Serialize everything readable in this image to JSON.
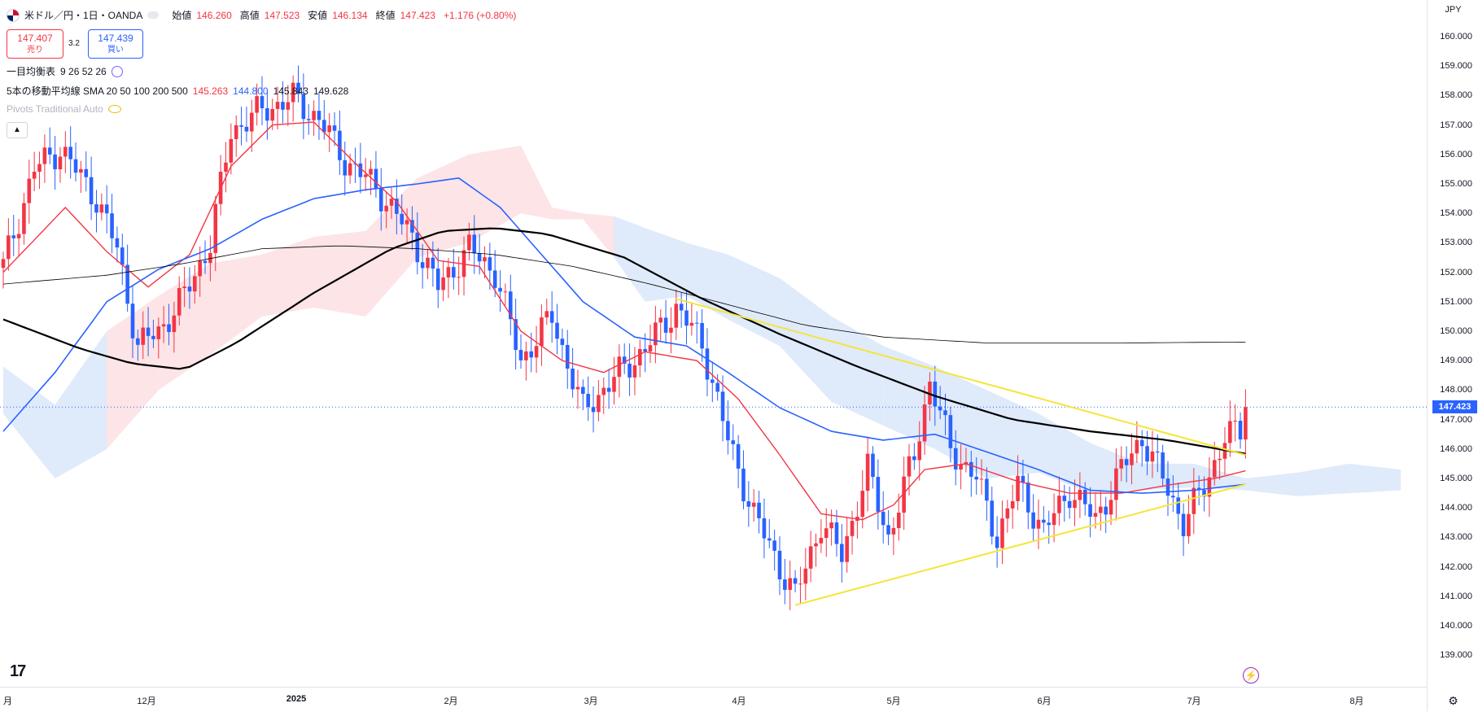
{
  "header": {
    "symbol_title": "米ドル／円・1日・OANDA",
    "ohlc": [
      {
        "key": "始値",
        "value": "146.260"
      },
      {
        "key": "高値",
        "value": "147.523"
      },
      {
        "key": "安値",
        "value": "146.134"
      },
      {
        "key": "終値",
        "value": "147.423"
      }
    ],
    "change": "+1.176 (+0.80%)",
    "sell_price": "147.407",
    "sell_label": "売り",
    "buy_price": "147.439",
    "buy_label": "買い",
    "spread": "3.2"
  },
  "indicators": {
    "ichimoku_label": "一目均衡表",
    "ichimoku_params": "9 26 52 26",
    "ma_label": "5本の移動平均線 SMA 20 50 100 200 500",
    "ma_values": [
      "145.263",
      "144.800",
      "145.843",
      "149.628"
    ],
    "pivots_label": "Pivots Traditional Auto"
  },
  "right_axis": {
    "currency": "JPY",
    "current_price_label": "147.423"
  },
  "colors": {
    "up": "#f23645",
    "down": "#2962ff",
    "sma20": "#f23645",
    "sma50": "#2962ff",
    "sma100": "#000000",
    "sma200": "#000000",
    "trendline": "#f5e53b",
    "cloud_bull": "#fde4e6",
    "cloud_bear": "#dfeafa"
  },
  "icons": [
    "us-japan-flag-icon",
    "settings-icon",
    "tradingview-logo-icon",
    "lightning-icon",
    "eye-hidden-icon",
    "chevron-up-icon"
  ],
  "chart_data": {
    "type": "candlestick",
    "title": "米ドル／円・1日・OANDA",
    "ylim": [
      138.5,
      160.5
    ],
    "yticks": [
      "160.000",
      "159.000",
      "158.000",
      "157.000",
      "156.000",
      "155.000",
      "154.000",
      "153.000",
      "152.000",
      "151.000",
      "150.000",
      "149.000",
      "148.000",
      "147.000",
      "146.000",
      "145.000",
      "144.000",
      "143.000",
      "142.000",
      "141.000",
      "140.000",
      "139.000"
    ],
    "xticks": [
      "月",
      "12月",
      "2025",
      "2月",
      "3月",
      "4月",
      "5月",
      "6月",
      "7月",
      "8月"
    ],
    "last_close": 147.423,
    "anchors": [
      {
        "i": 0,
        "price": 152.2
      },
      {
        "i": 6,
        "price": 155.5
      },
      {
        "i": 11,
        "price": 156.2
      },
      {
        "i": 18,
        "price": 154.5
      },
      {
        "i": 22,
        "price": 152.8
      },
      {
        "i": 26,
        "price": 149.5
      },
      {
        "i": 30,
        "price": 150.0
      },
      {
        "i": 35,
        "price": 151.2
      },
      {
        "i": 40,
        "price": 153.0
      },
      {
        "i": 44,
        "price": 156.8
      },
      {
        "i": 50,
        "price": 157.5
      },
      {
        "i": 56,
        "price": 157.9
      },
      {
        "i": 61,
        "price": 157.2
      },
      {
        "i": 66,
        "price": 155.8
      },
      {
        "i": 72,
        "price": 154.9
      },
      {
        "i": 79,
        "price": 153.2
      },
      {
        "i": 84,
        "price": 151.5
      },
      {
        "i": 90,
        "price": 152.8
      },
      {
        "i": 95,
        "price": 152.0
      },
      {
        "i": 100,
        "price": 149.0
      },
      {
        "i": 106,
        "price": 150.5
      },
      {
        "i": 112,
        "price": 147.3
      },
      {
        "i": 118,
        "price": 148.4
      },
      {
        "i": 124,
        "price": 149.4
      },
      {
        "i": 130,
        "price": 150.8
      },
      {
        "i": 135,
        "price": 149.6
      },
      {
        "i": 140,
        "price": 146.3
      },
      {
        "i": 145,
        "price": 143.8
      },
      {
        "i": 150,
        "price": 142.0
      },
      {
        "i": 153,
        "price": 141.0
      },
      {
        "i": 158,
        "price": 143.5
      },
      {
        "i": 162,
        "price": 142.4
      },
      {
        "i": 167,
        "price": 145.3
      },
      {
        "i": 171,
        "price": 143.0
      },
      {
        "i": 176,
        "price": 145.8
      },
      {
        "i": 179,
        "price": 148.3
      },
      {
        "i": 183,
        "price": 146.0
      },
      {
        "i": 188,
        "price": 145.0
      },
      {
        "i": 192,
        "price": 143.0
      },
      {
        "i": 196,
        "price": 144.8
      },
      {
        "i": 201,
        "price": 143.2
      },
      {
        "i": 206,
        "price": 144.6
      },
      {
        "i": 211,
        "price": 143.6
      },
      {
        "i": 216,
        "price": 145.3
      },
      {
        "i": 220,
        "price": 146.4
      },
      {
        "i": 224,
        "price": 145.0
      },
      {
        "i": 228,
        "price": 143.5
      },
      {
        "i": 232,
        "price": 144.7
      },
      {
        "i": 236,
        "price": 146.4
      },
      {
        "i": 239,
        "price": 146.6
      },
      {
        "i": 240,
        "price": 147.42
      }
    ],
    "series": [
      {
        "name": "SMA 20",
        "key": "sma20",
        "anchors": [
          [
            0,
            152.0
          ],
          [
            12,
            154.2
          ],
          [
            20,
            152.7
          ],
          [
            28,
            151.5
          ],
          [
            36,
            152.6
          ],
          [
            44,
            155.6
          ],
          [
            52,
            157.0
          ],
          [
            60,
            157.1
          ],
          [
            68,
            155.7
          ],
          [
            76,
            154.4
          ],
          [
            84,
            152.4
          ],
          [
            92,
            152.2
          ],
          [
            100,
            150.0
          ],
          [
            108,
            149.0
          ],
          [
            116,
            148.6
          ],
          [
            124,
            149.3
          ],
          [
            134,
            149.0
          ],
          [
            142,
            147.7
          ],
          [
            150,
            145.8
          ],
          [
            158,
            143.8
          ],
          [
            166,
            143.6
          ],
          [
            172,
            144.1
          ],
          [
            178,
            145.3
          ],
          [
            186,
            145.5
          ],
          [
            196,
            144.9
          ],
          [
            206,
            144.5
          ],
          [
            216,
            144.5
          ],
          [
            226,
            144.8
          ],
          [
            234,
            145.0
          ],
          [
            240,
            145.26
          ]
        ]
      },
      {
        "name": "SMA 50",
        "key": "sma50",
        "anchors": [
          [
            0,
            146.6
          ],
          [
            10,
            148.6
          ],
          [
            20,
            151.0
          ],
          [
            30,
            152.1
          ],
          [
            40,
            152.8
          ],
          [
            50,
            153.8
          ],
          [
            60,
            154.5
          ],
          [
            70,
            154.8
          ],
          [
            80,
            155.0
          ],
          [
            88,
            155.2
          ],
          [
            96,
            154.2
          ],
          [
            104,
            152.6
          ],
          [
            112,
            151.0
          ],
          [
            122,
            149.8
          ],
          [
            132,
            149.5
          ],
          [
            140,
            148.6
          ],
          [
            150,
            147.4
          ],
          [
            160,
            146.6
          ],
          [
            170,
            146.3
          ],
          [
            180,
            146.5
          ],
          [
            190,
            145.9
          ],
          [
            200,
            145.3
          ],
          [
            210,
            144.6
          ],
          [
            220,
            144.5
          ],
          [
            230,
            144.6
          ],
          [
            240,
            144.8
          ]
        ]
      },
      {
        "name": "SMA 100",
        "key": "sma100",
        "anchors": [
          [
            0,
            150.4
          ],
          [
            15,
            149.4
          ],
          [
            25,
            148.9
          ],
          [
            35,
            148.7
          ],
          [
            45,
            149.6
          ],
          [
            60,
            151.3
          ],
          [
            75,
            152.8
          ],
          [
            85,
            153.4
          ],
          [
            95,
            153.5
          ],
          [
            105,
            153.3
          ],
          [
            120,
            152.5
          ],
          [
            135,
            151.1
          ],
          [
            150,
            149.9
          ],
          [
            165,
            148.8
          ],
          [
            180,
            147.8
          ],
          [
            195,
            147.0
          ],
          [
            210,
            146.6
          ],
          [
            225,
            146.3
          ],
          [
            240,
            145.84
          ]
        ]
      },
      {
        "name": "SMA 200",
        "key": "sma200",
        "anchors": [
          [
            0,
            151.6
          ],
          [
            20,
            151.9
          ],
          [
            35,
            152.3
          ],
          [
            50,
            152.8
          ],
          [
            65,
            152.9
          ],
          [
            80,
            152.8
          ],
          [
            95,
            152.6
          ],
          [
            110,
            152.2
          ],
          [
            125,
            151.6
          ],
          [
            140,
            150.9
          ],
          [
            155,
            150.2
          ],
          [
            170,
            149.8
          ],
          [
            190,
            149.6
          ],
          [
            215,
            149.6
          ],
          [
            240,
            149.63
          ]
        ]
      }
    ],
    "trendlines": [
      {
        "name": "upper",
        "from": [
          130,
          151.1
        ],
        "to": [
          240,
          145.8
        ]
      },
      {
        "name": "lower",
        "from": [
          153,
          140.7
        ],
        "to": [
          240,
          144.8
        ]
      }
    ],
    "cloud": [
      [
        0,
        148.8,
        147.2
      ],
      [
        10,
        147.5,
        145.0
      ],
      [
        20,
        150.0,
        146.0
      ],
      [
        30,
        151.2,
        148.0
      ],
      [
        40,
        152.3,
        149.2
      ],
      [
        50,
        152.6,
        150.5
      ],
      [
        60,
        153.2,
        150.8
      ],
      [
        70,
        153.4,
        150.5
      ],
      [
        80,
        155.2,
        152.5
      ],
      [
        90,
        156.0,
        153.0
      ],
      [
        100,
        156.3,
        154.0
      ],
      [
        106,
        154.2,
        153.8
      ],
      [
        112,
        154.0,
        153.8
      ],
      [
        118,
        153.9,
        152.5
      ],
      [
        124,
        153.5,
        151.0
      ],
      [
        132,
        153.0,
        151.2
      ],
      [
        140,
        152.6,
        150.4
      ],
      [
        150,
        151.8,
        149.5
      ],
      [
        160,
        150.5,
        147.6
      ],
      [
        170,
        149.5,
        146.8
      ],
      [
        180,
        148.8,
        146.0
      ],
      [
        190,
        148.0,
        145.0
      ],
      [
        200,
        147.2,
        145.2
      ],
      [
        210,
        146.2,
        144.5
      ],
      [
        220,
        145.5,
        144.6
      ],
      [
        230,
        145.5,
        144.7
      ],
      [
        240,
        145.0,
        144.6
      ],
      [
        250,
        145.2,
        144.4
      ],
      [
        260,
        145.5,
        144.5
      ],
      [
        270,
        145.3,
        144.6
      ]
    ]
  }
}
